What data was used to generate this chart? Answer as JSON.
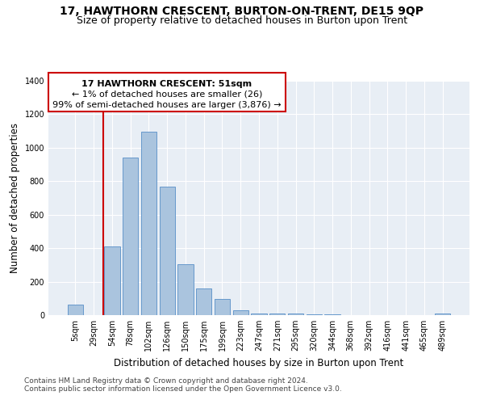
{
  "title": "17, HAWTHORN CRESCENT, BURTON-ON-TRENT, DE15 9QP",
  "subtitle": "Size of property relative to detached houses in Burton upon Trent",
  "xlabel": "Distribution of detached houses by size in Burton upon Trent",
  "ylabel": "Number of detached properties",
  "footnote1": "Contains HM Land Registry data © Crown copyright and database right 2024.",
  "footnote2": "Contains public sector information licensed under the Open Government Licence v3.0.",
  "annotation_line1": "17 HAWTHORN CRESCENT: 51sqm",
  "annotation_line2": "← 1% of detached houses are smaller (26)",
  "annotation_line3": "99% of semi-detached houses are larger (3,876) →",
  "bar_color": "#aac4de",
  "bar_edge_color": "#6699cc",
  "marker_color": "#cc0000",
  "background_color": "#e8eef5",
  "categories": [
    "5sqm",
    "29sqm",
    "54sqm",
    "78sqm",
    "102sqm",
    "126sqm",
    "150sqm",
    "175sqm",
    "199sqm",
    "223sqm",
    "247sqm",
    "271sqm",
    "295sqm",
    "320sqm",
    "344sqm",
    "368sqm",
    "392sqm",
    "416sqm",
    "441sqm",
    "465sqm",
    "489sqm"
  ],
  "values": [
    63,
    0,
    410,
    940,
    1095,
    770,
    305,
    160,
    95,
    28,
    12,
    10,
    10,
    5,
    3,
    2,
    1,
    1,
    0,
    0,
    8
  ],
  "ylim": [
    0,
    1400
  ],
  "yticks": [
    0,
    200,
    400,
    600,
    800,
    1000,
    1200,
    1400
  ],
  "title_fontsize": 10,
  "subtitle_fontsize": 9,
  "axis_label_fontsize": 8.5,
  "tick_fontsize": 7,
  "annotation_fontsize": 8,
  "footnote_fontsize": 6.5
}
